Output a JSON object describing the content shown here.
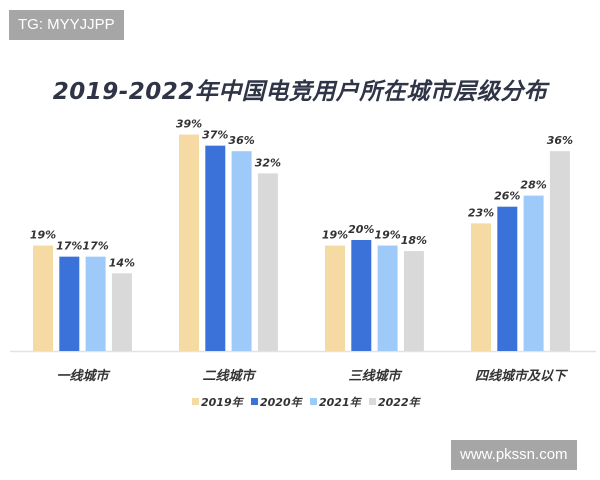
{
  "watermarks": {
    "top_left": "TG: MYYJJPP",
    "bottom_right": "www.pkssn.com"
  },
  "chart_data": {
    "type": "bar",
    "title": "2019-2022年中国电竞用户所在城市层级分布",
    "categories": [
      "一线城市",
      "二线城市",
      "三线城市",
      "四线城市及以下"
    ],
    "series": [
      {
        "name": "2019年",
        "color": "#F5DBA3",
        "values": [
          19,
          39,
          19,
          23
        ]
      },
      {
        "name": "2020年",
        "color": "#3B72DA",
        "values": [
          17,
          37,
          20,
          26
        ]
      },
      {
        "name": "2021年",
        "color": "#9DCAF8",
        "values": [
          17,
          36,
          19,
          28
        ]
      },
      {
        "name": "2022年",
        "color": "#D9D9D9",
        "values": [
          14,
          32,
          18,
          36
        ]
      }
    ],
    "value_suffix": "%",
    "ylim": [
      0,
      40
    ],
    "grid": false,
    "legend": "bottom-center"
  }
}
